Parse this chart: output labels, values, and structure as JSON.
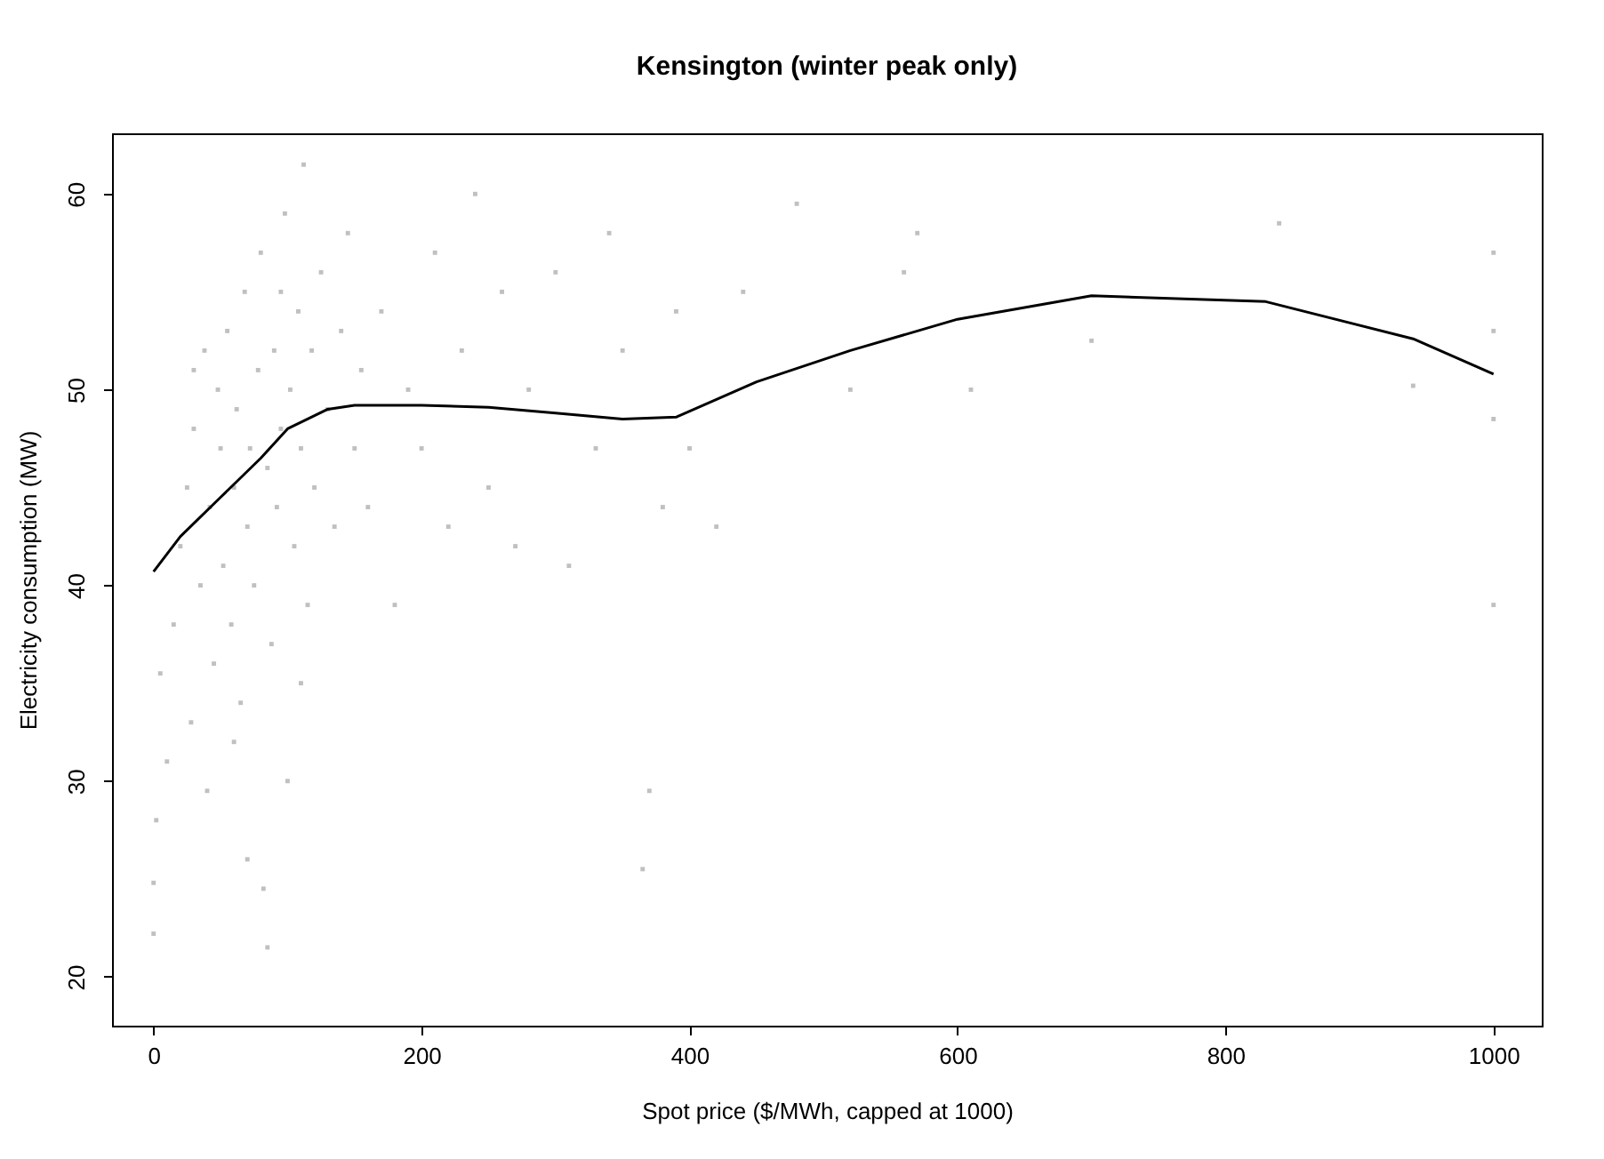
{
  "chart_data": {
    "type": "scatter",
    "title": "Kensington (winter peak only)",
    "xlabel": "Spot price ($/MWh, capped at 1000)",
    "ylabel": "Electricity consumption (MW)",
    "xlim": [
      -31,
      1036
    ],
    "ylim": [
      17.5,
      63.1
    ],
    "xticks": [
      0,
      200,
      400,
      600,
      800,
      1000
    ],
    "yticks": [
      20,
      30,
      40,
      50,
      60
    ],
    "grid": false,
    "marker": "square",
    "series": [
      {
        "type": "scatter",
        "color": "#c0c0c0",
        "x": [
          0,
          0,
          2,
          5,
          10,
          15,
          20,
          25,
          28,
          30,
          35,
          38,
          40,
          42,
          45,
          48,
          50,
          52,
          55,
          58,
          60,
          62,
          65,
          68,
          70,
          72,
          75,
          78,
          80,
          82,
          85,
          88,
          90,
          92,
          95,
          98,
          100,
          102,
          105,
          108,
          110,
          112,
          115,
          118,
          120,
          125,
          130,
          135,
          140,
          145,
          150,
          155,
          160,
          170,
          180,
          190,
          200,
          210,
          220,
          230,
          240,
          250,
          260,
          270,
          280,
          300,
          310,
          330,
          340,
          350,
          365,
          370,
          380,
          390,
          400,
          420,
          440,
          480,
          520,
          560,
          570,
          610,
          700,
          840,
          940,
          1000,
          1000,
          1000,
          1000,
          85,
          70,
          60,
          30,
          110,
          95
        ],
        "values": [
          22.2,
          24.8,
          28,
          35.5,
          31,
          38,
          42,
          45,
          33,
          48,
          40,
          52,
          29.5,
          44,
          36,
          50,
          47,
          41,
          53,
          38,
          45,
          49,
          34,
          55,
          43,
          47,
          40,
          51,
          57,
          24.5,
          46,
          37,
          52,
          44,
          48,
          59,
          30,
          50,
          42,
          54,
          47,
          61.5,
          39,
          52,
          45,
          56,
          49,
          43,
          53,
          58,
          47,
          51,
          44,
          54,
          39,
          50,
          47,
          57,
          43,
          52,
          60,
          45,
          55,
          42,
          50,
          56,
          41,
          47,
          58,
          52,
          25.5,
          29.5,
          44,
          54,
          47,
          43,
          55,
          59.5,
          50,
          56,
          58,
          50,
          52.5,
          58.5,
          50.2,
          57,
          53,
          48.5,
          39,
          21.5,
          26,
          32,
          51,
          35,
          55
        ]
      },
      {
        "type": "line",
        "color": "#000000",
        "line_style": "solid",
        "marker": "none",
        "x": [
          0,
          20,
          50,
          80,
          100,
          130,
          150,
          200,
          250,
          300,
          350,
          390,
          450,
          520,
          600,
          700,
          830,
          940,
          1000
        ],
        "values": [
          40.7,
          42.5,
          44.5,
          46.5,
          48,
          49,
          49.2,
          49.2,
          49.1,
          48.8,
          48.5,
          48.6,
          50.4,
          52,
          53.6,
          54.8,
          54.5,
          52.6,
          50.8
        ]
      }
    ]
  }
}
